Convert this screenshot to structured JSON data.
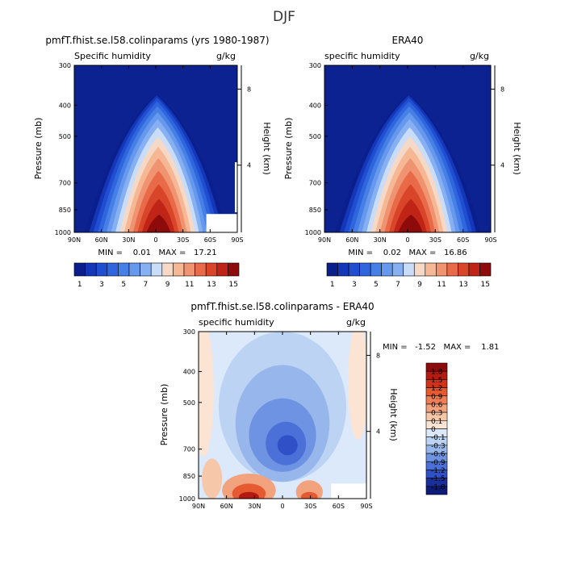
{
  "page_title": "DJF",
  "chart_data": [
    {
      "type": "heatmap",
      "title": "pmfT.fhist.se.l58.colinparams (yrs 1980-1987)",
      "subtitle_left": "Specific humidity",
      "subtitle_right": "g/kg",
      "ylabel": "Pressure (mb)",
      "y2label": "Height (km)",
      "x_ticks": [
        "90N",
        "60N",
        "30N",
        "0",
        "30S",
        "60S",
        "90S"
      ],
      "y_ticks": [
        "300",
        "400",
        "500",
        "700",
        "850",
        "1000"
      ],
      "y2_ticks": [
        "8",
        "4"
      ],
      "ylim": [
        1000,
        300
      ],
      "xlim": [
        "90N",
        "90S"
      ],
      "stats": "MIN =    0.01   MAX =   17.21",
      "colorbar_labels": [
        "1",
        "3",
        "5",
        "7",
        "9",
        "11",
        "13",
        "15"
      ],
      "peak_value": 17.21,
      "peak_location": [
        "0",
        "1000"
      ]
    },
    {
      "type": "heatmap",
      "title": "ERA40",
      "subtitle_left": "specific humidity",
      "subtitle_right": "g/kg",
      "ylabel": "Pressure (mb)",
      "y2label": "Height (km)",
      "x_ticks": [
        "90N",
        "60N",
        "30N",
        "0",
        "30S",
        "60S",
        "90S"
      ],
      "y_ticks": [
        "300",
        "400",
        "500",
        "700",
        "850",
        "1000"
      ],
      "y2_ticks": [
        "8",
        "4"
      ],
      "ylim": [
        1000,
        300
      ],
      "xlim": [
        "90N",
        "90S"
      ],
      "stats": "MIN =    0.02   MAX =   16.86",
      "colorbar_labels": [
        "1",
        "3",
        "5",
        "7",
        "9",
        "11",
        "13",
        "15"
      ],
      "peak_value": 16.86,
      "peak_location": [
        "0",
        "1000"
      ]
    },
    {
      "type": "heatmap",
      "title": "pmfT.fhist.se.l58.colinparams  -  ERA40",
      "subtitle_left": "specific humidity",
      "subtitle_right": "g/kg",
      "ylabel": "Pressure (mb)",
      "y2label": "Height (km)",
      "x_ticks": [
        "90N",
        "60N",
        "30N",
        "0",
        "30S",
        "60S",
        "90S"
      ],
      "y_ticks": [
        "300",
        "400",
        "500",
        "700",
        "850",
        "1000"
      ],
      "y2_ticks": [
        "8",
        "4"
      ],
      "ylim": [
        1000,
        300
      ],
      "xlim": [
        "90N",
        "90S"
      ],
      "stats": "MIN =   -1.52   MAX =    1.81",
      "colorbar_labels": [
        "1.8",
        "1.5",
        "1.2",
        "0.9",
        "0.6",
        "0.3",
        "0.1",
        "0",
        "-0.1",
        "-0.3",
        "-0.6",
        "-0.9",
        "-1.2",
        "-1.5",
        "-1.8"
      ],
      "min_value": -1.52,
      "max_value": 1.81
    }
  ],
  "palettes": {
    "sequential": [
      "#0a1e8c",
      "#1436b8",
      "#1f4fd0",
      "#2f66de",
      "#4680e6",
      "#6699ee",
      "#86b0f2",
      "#c9dcf8",
      "#f5d9c6",
      "#f6b795",
      "#ef9370",
      "#e86a49",
      "#d94528",
      "#c02417",
      "#8e0b0b"
    ],
    "difference": [
      "#8e0b0b",
      "#b21a12",
      "#cf3318",
      "#e55a30",
      "#ee7e55",
      "#f3a27e",
      "#f6c7a8",
      "#fbe4d4",
      "#dbe9fb",
      "#bcd3f4",
      "#97b6ec",
      "#6e93e2",
      "#4b70d8",
      "#2f50c6",
      "#1b2f9a",
      "#0e1b7a"
    ],
    "background_top": "#0b2290",
    "missing": "#ffffff"
  }
}
